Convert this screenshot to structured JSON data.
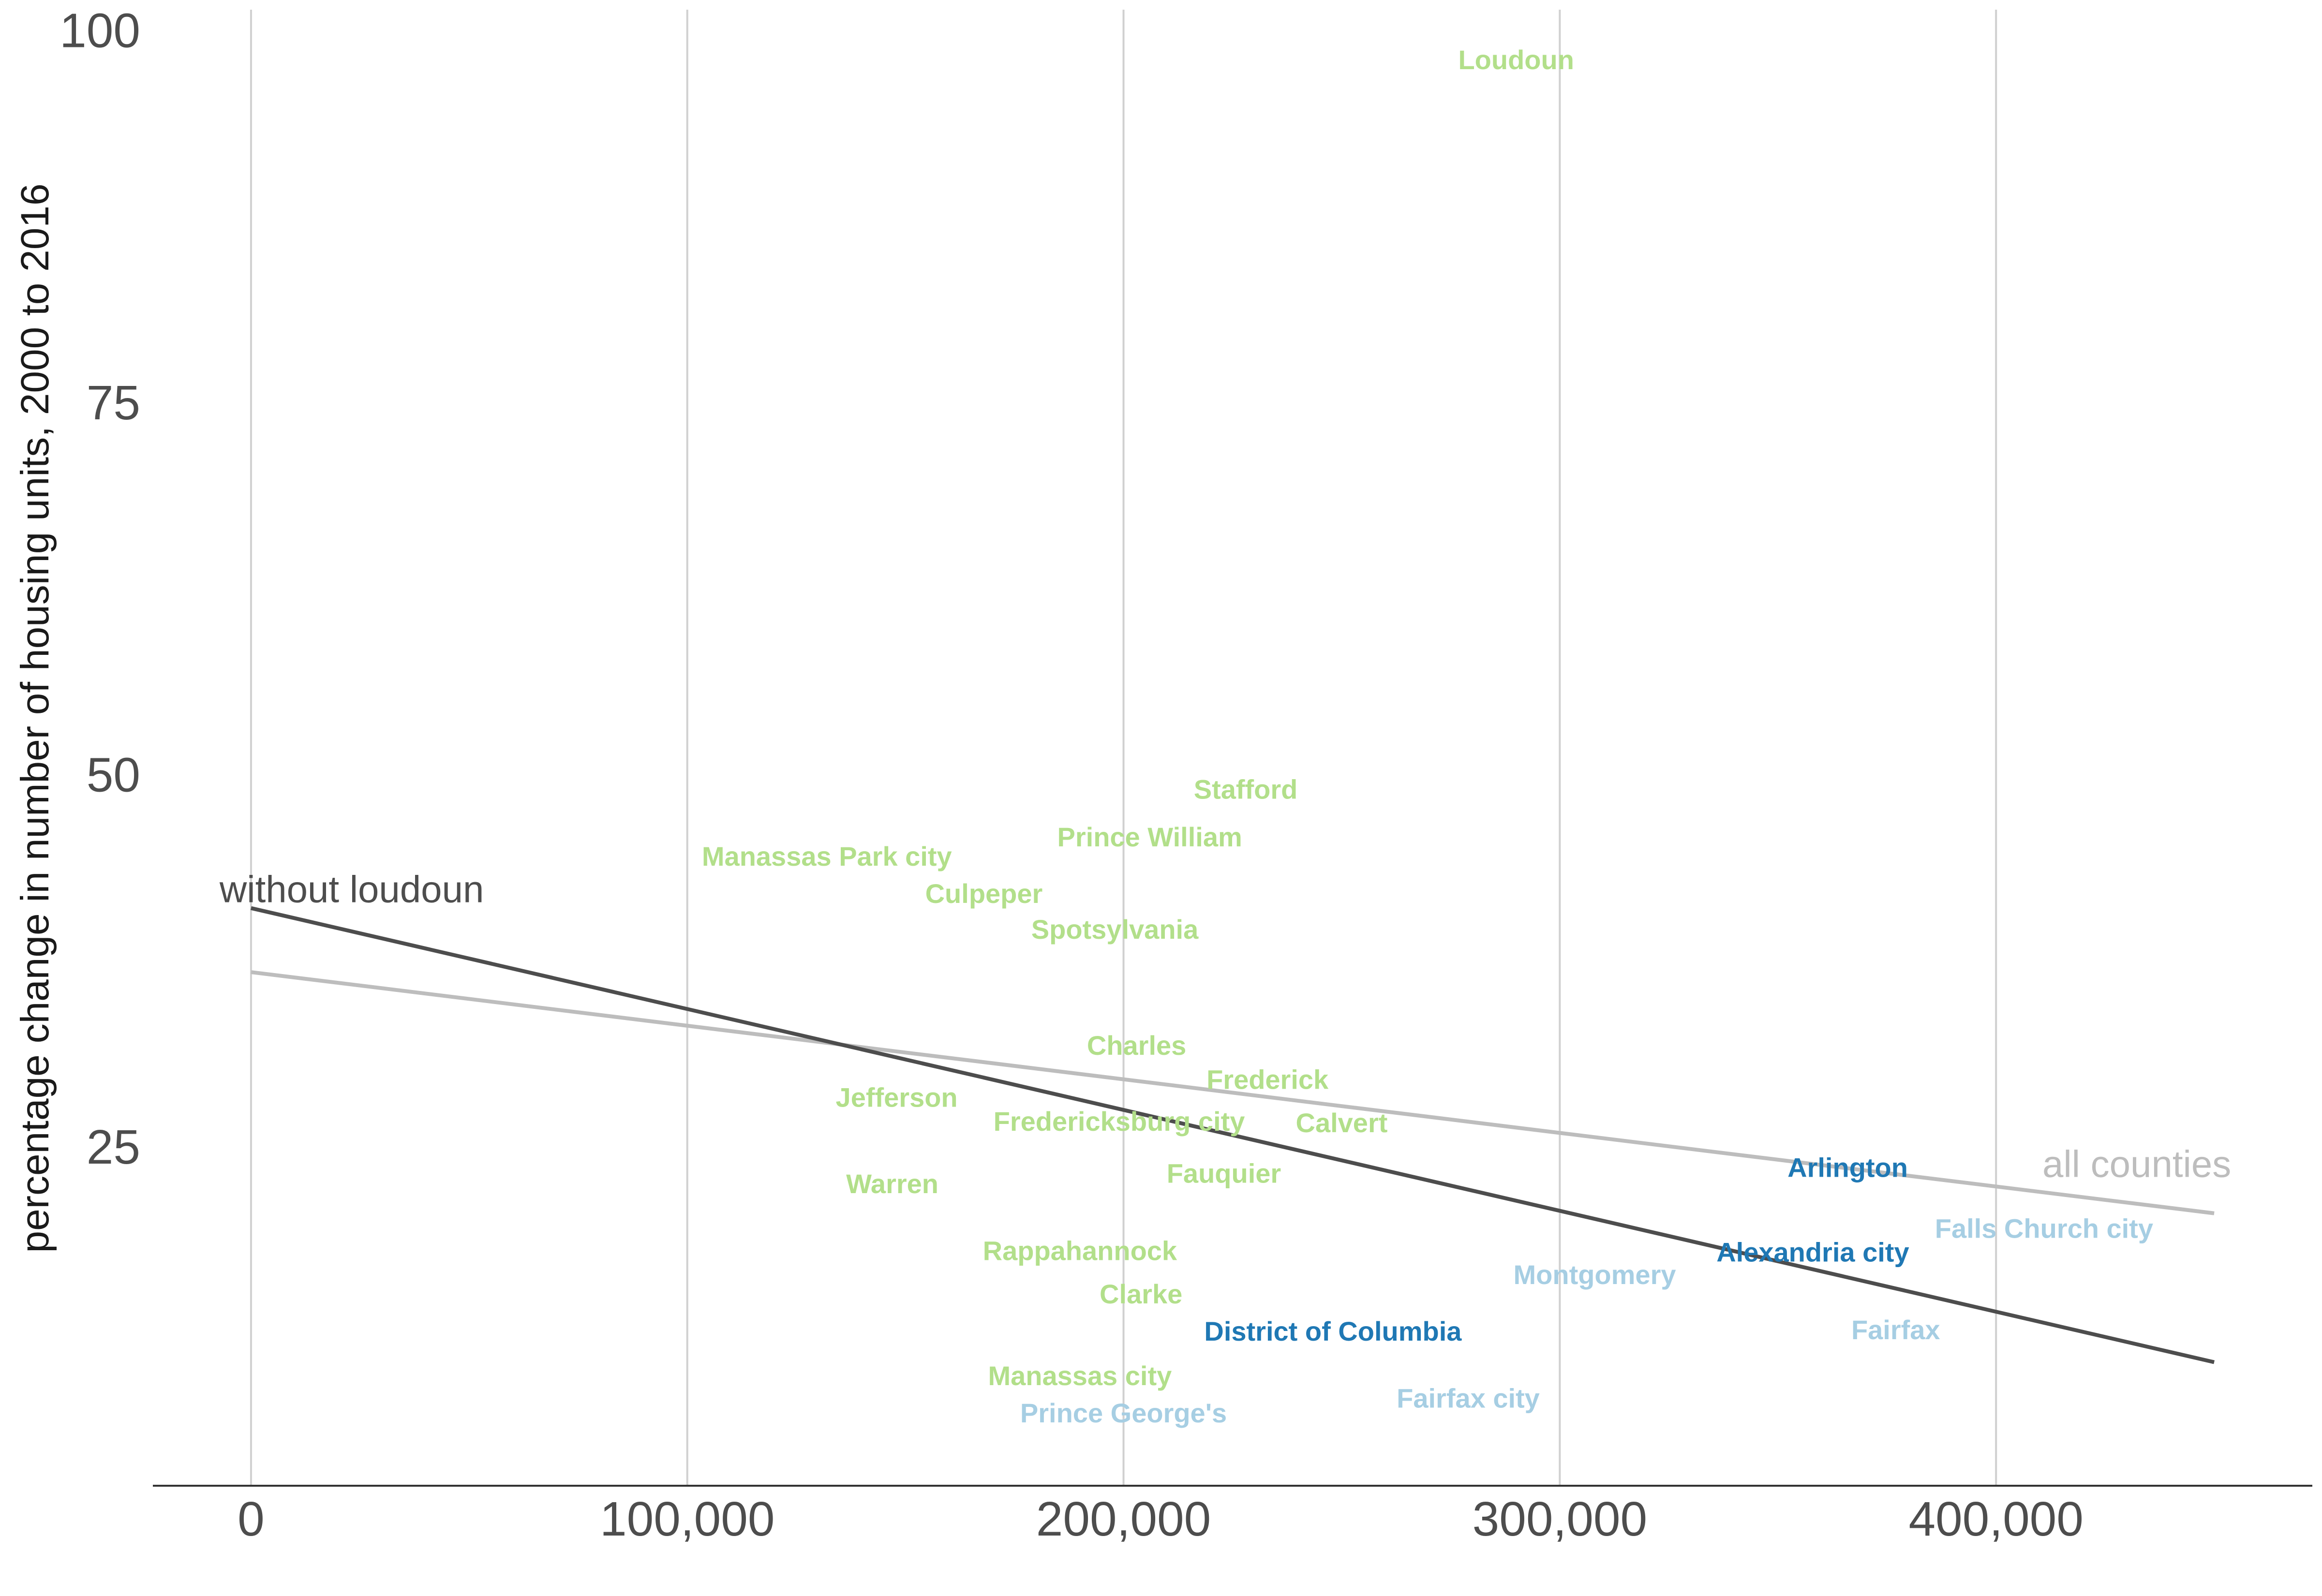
{
  "chart_data": {
    "type": "scatter",
    "title": "",
    "xlabel": "",
    "ylabel": "percentage change in number of housing units, 2000 to 2016",
    "xlim": [
      -22500,
      472500
    ],
    "ylim": [
      2.2,
      102
    ],
    "x_ticks": [
      0,
      100000,
      200000,
      300000,
      400000
    ],
    "x_tick_labels": [
      "0",
      "100,000",
      "200,000",
      "300,000",
      "400,000"
    ],
    "y_ticks": [
      25,
      50,
      75,
      100
    ],
    "y_tick_labels": [
      "25",
      "50",
      "75",
      "100"
    ],
    "grid": "vertical",
    "colors": {
      "green": "#b2df8a",
      "light_blue": "#a6cee3",
      "dark_blue": "#1f78b4",
      "line_all": "#bdbdbd",
      "line_without": "#4d4d4d",
      "grid": "#d0d0d0",
      "axis": "#333333"
    },
    "points": [
      {
        "label": "Loudoun",
        "x": 290000,
        "y": 98,
        "color": "#b2df8a"
      },
      {
        "label": "Stafford",
        "x": 228000,
        "y": 49,
        "color": "#b2df8a"
      },
      {
        "label": "Prince William",
        "x": 206000,
        "y": 45.8,
        "color": "#b2df8a"
      },
      {
        "label": "Manassas Park city",
        "x": 132000,
        "y": 44.5,
        "color": "#b2df8a"
      },
      {
        "label": "Culpeper",
        "x": 168000,
        "y": 42,
        "color": "#b2df8a"
      },
      {
        "label": "Spotsylvania",
        "x": 198000,
        "y": 39.6,
        "color": "#b2df8a"
      },
      {
        "label": "Charles",
        "x": 203000,
        "y": 31.8,
        "color": "#b2df8a"
      },
      {
        "label": "Frederick",
        "x": 233000,
        "y": 29.5,
        "color": "#b2df8a"
      },
      {
        "label": "Jefferson",
        "x": 148000,
        "y": 28.3,
        "color": "#b2df8a"
      },
      {
        "label": "Fredericksburg city",
        "x": 199000,
        "y": 26.7,
        "color": "#b2df8a"
      },
      {
        "label": "Calvert",
        "x": 250000,
        "y": 26.6,
        "color": "#b2df8a"
      },
      {
        "label": "Fauquier",
        "x": 223000,
        "y": 23.2,
        "color": "#b2df8a"
      },
      {
        "label": "Warren",
        "x": 147000,
        "y": 22.5,
        "color": "#b2df8a"
      },
      {
        "label": "Rappahannock",
        "x": 190000,
        "y": 18,
        "color": "#b2df8a"
      },
      {
        "label": "Clarke",
        "x": 204000,
        "y": 15.1,
        "color": "#b2df8a"
      },
      {
        "label": "Manassas city",
        "x": 190000,
        "y": 9.6,
        "color": "#b2df8a"
      },
      {
        "label": "District of Columbia",
        "x": 248000,
        "y": 12.6,
        "color": "#1f78b4"
      },
      {
        "label": "Prince George's",
        "x": 200000,
        "y": 7.1,
        "color": "#a6cee3"
      },
      {
        "label": "Fairfax city",
        "x": 279000,
        "y": 8.1,
        "color": "#a6cee3"
      },
      {
        "label": "Montgomery",
        "x": 308000,
        "y": 16.4,
        "color": "#a6cee3"
      },
      {
        "label": "Fairfax",
        "x": 377000,
        "y": 12.7,
        "color": "#a6cee3"
      },
      {
        "label": "Arlington",
        "x": 366000,
        "y": 23.6,
        "color": "#1f78b4"
      },
      {
        "label": "Alexandria city",
        "x": 358000,
        "y": 17.9,
        "color": "#1f78b4"
      },
      {
        "label": "Falls Church city",
        "x": 411000,
        "y": 19.5,
        "color": "#a6cee3"
      }
    ],
    "lines": [
      {
        "name": "all counties",
        "x": [
          0,
          450000
        ],
        "y": [
          36.7,
          20.5
        ],
        "color": "#bdbdbd"
      },
      {
        "name": "without loudoun",
        "x": [
          0,
          450000
        ],
        "y": [
          41,
          10.5
        ],
        "color": "#4d4d4d"
      }
    ]
  }
}
